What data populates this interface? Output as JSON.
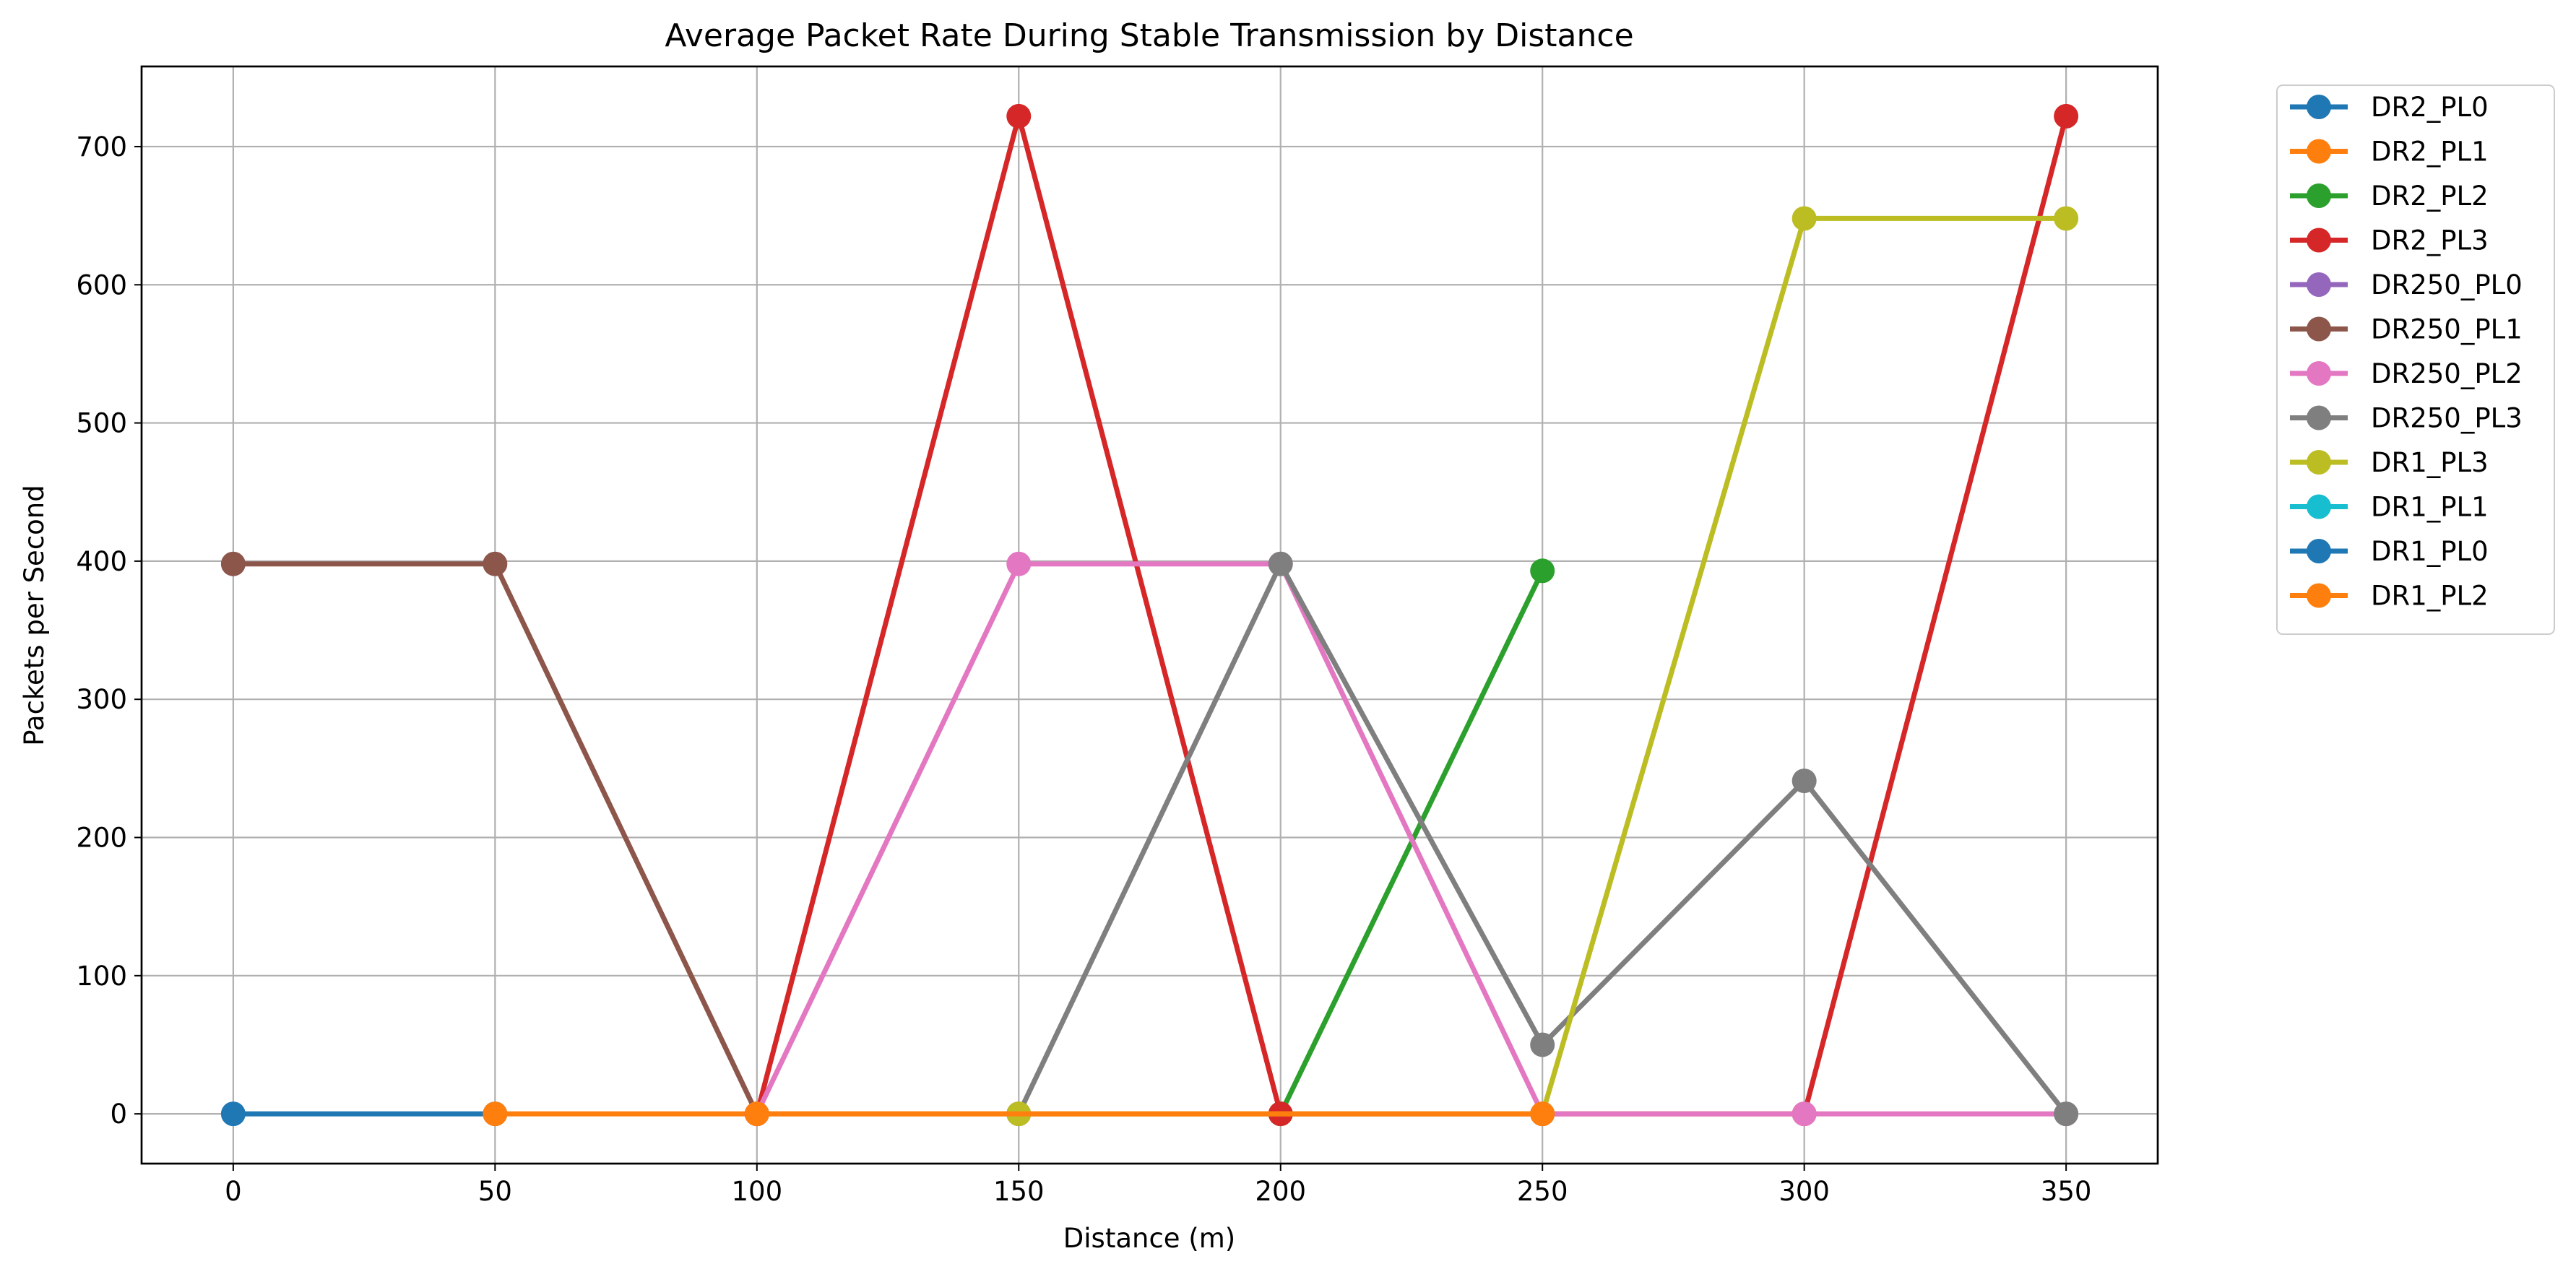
{
  "chart_data": {
    "type": "line",
    "title": "Average Packet Rate During Stable Transmission by Distance",
    "xlabel": "Distance (m)",
    "ylabel": "Packets per Second",
    "xlim": [
      -17.5,
      367.5
    ],
    "ylim": [
      -36,
      758
    ],
    "xticks": [
      0,
      50,
      100,
      150,
      200,
      250,
      300,
      350
    ],
    "yticks": [
      0,
      100,
      200,
      300,
      400,
      500,
      600,
      700
    ],
    "grid": true,
    "legend_position": "outside-right",
    "series": [
      {
        "name": "DR2_PL0",
        "color": "#1f77b4",
        "points": [
          [
            0,
            0
          ],
          [
            50,
            0
          ]
        ]
      },
      {
        "name": "DR2_PL1",
        "color": "#ff7f0e",
        "points": [
          [
            50,
            0
          ],
          [
            100,
            0
          ],
          [
            150,
            0
          ],
          [
            200,
            0
          ]
        ]
      },
      {
        "name": "DR2_PL2",
        "color": "#2ca02c",
        "points": [
          [
            200,
            0
          ],
          [
            250,
            393
          ]
        ]
      },
      {
        "name": "DR2_PL3",
        "color": "#d62728",
        "points": [
          [
            100,
            0
          ],
          [
            150,
            722
          ],
          [
            200,
            0
          ],
          [
            250,
            0
          ],
          [
            300,
            0
          ],
          [
            350,
            722
          ]
        ]
      },
      {
        "name": "DR250_PL0",
        "color": "#9467bd",
        "points": []
      },
      {
        "name": "DR250_PL1",
        "color": "#8c564b",
        "points": [
          [
            0,
            398
          ],
          [
            50,
            398
          ],
          [
            100,
            0
          ]
        ]
      },
      {
        "name": "DR250_PL2",
        "color": "#e377c2",
        "points": [
          [
            100,
            0
          ],
          [
            150,
            398
          ],
          [
            200,
            398
          ],
          [
            250,
            0
          ],
          [
            300,
            0
          ],
          [
            350,
            0
          ]
        ]
      },
      {
        "name": "DR250_PL3",
        "color": "#7f7f7f",
        "points": [
          [
            150,
            0
          ],
          [
            200,
            398
          ],
          [
            250,
            50
          ],
          [
            300,
            241
          ],
          [
            350,
            0
          ]
        ]
      },
      {
        "name": "DR1_PL3",
        "color": "#bcbd22",
        "points": [
          [
            150,
            0
          ],
          [
            250,
            0
          ],
          [
            300,
            648
          ],
          [
            350,
            648
          ]
        ]
      },
      {
        "name": "DR1_PL1",
        "color": "#17becf",
        "points": []
      },
      {
        "name": "DR1_PL0",
        "color": "#1f77b4",
        "points": []
      },
      {
        "name": "DR1_PL2",
        "color": "#ff7f0e",
        "points": [
          [
            100,
            0
          ],
          [
            250,
            0
          ]
        ]
      }
    ]
  }
}
